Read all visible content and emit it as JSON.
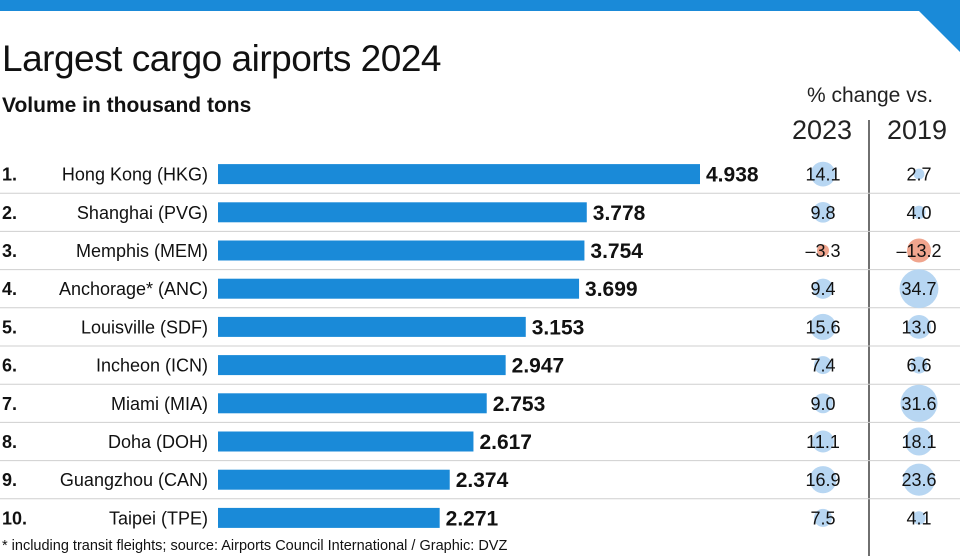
{
  "title": "Largest cargo airports 2024",
  "subtitle": "Volume in thousand tons",
  "change_header": "% change vs.",
  "change_years": [
    "2023",
    "2019"
  ],
  "footnote": "* including transit fleights; source: Airports Council International / Graphic: DVZ",
  "colors": {
    "bar": "#1a8ad8",
    "accent": "#1a8ad8",
    "bubble_positive": "#b7d6f2",
    "bubble_negative": "#f0a58e"
  },
  "chart_data": {
    "type": "bar",
    "orientation": "horizontal",
    "categories": [
      "Hong Kong (HKG)",
      "Shanghai (PVG)",
      "Memphis (MEM)",
      "Anchorage* (ANC)",
      "Louisville (SDF)",
      "Incheon (ICN)",
      "Miami (MIA)",
      "Doha (DOH)",
      "Guangzhou (CAN)",
      "Taipei (TPE)"
    ],
    "ranks": [
      "1.",
      "2.",
      "3.",
      "4.",
      "5.",
      "6.",
      "7.",
      "8.",
      "9.",
      "10."
    ],
    "values": [
      4.938,
      3.778,
      3.754,
      3.699,
      3.153,
      2.947,
      2.753,
      2.617,
      2.374,
      2.271
    ],
    "value_labels": [
      "4.938",
      "3.778",
      "3.754",
      "3.699",
      "3.153",
      "2.947",
      "2.753",
      "2.617",
      "2.374",
      "2.271"
    ],
    "change_vs_2023": [
      14.1,
      9.8,
      -3.3,
      9.4,
      15.6,
      7.4,
      9.0,
      11.1,
      16.9,
      7.5
    ],
    "change_vs_2023_labels": [
      "14.1",
      "9.8",
      "–3.3",
      "9.4",
      "15.6",
      "7.4",
      "9.0",
      "11.1",
      "16.9",
      "7.5"
    ],
    "change_vs_2019": [
      2.7,
      4.0,
      -13.2,
      34.7,
      13.0,
      6.6,
      31.6,
      18.1,
      23.6,
      4.1
    ],
    "change_vs_2019_labels": [
      "2.7",
      "4.0",
      "–13.2",
      "34.7",
      "13.0",
      "6.6",
      "31.6",
      "18.1",
      "23.6",
      "4.1"
    ],
    "title": "Largest cargo airports 2024",
    "ylabel": "Volume in thousand tons",
    "xlim": [
      0,
      5.5
    ],
    "grid": false
  }
}
